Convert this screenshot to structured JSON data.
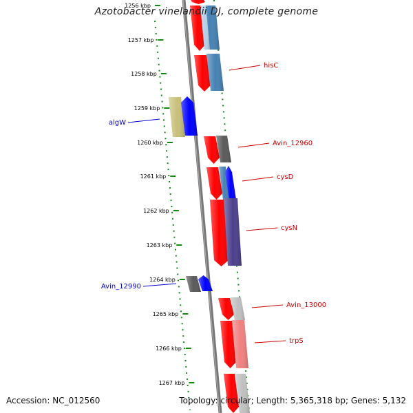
{
  "title": "Azotobacter vinelandii DJ, complete genome",
  "footer": {
    "accession": "Accession: NC_012560",
    "summary": "Topology: circular; Length: 5,365,318 bp; Genes: 5,132"
  },
  "ticks": [
    {
      "label": "1256 kbp"
    },
    {
      "label": "1257 kbp"
    },
    {
      "label": "1258 kbp"
    },
    {
      "label": "1259 kbp"
    },
    {
      "label": "1260 kbp"
    },
    {
      "label": "1261 kbp"
    },
    {
      "label": "1262 kbp"
    },
    {
      "label": "1263 kbp"
    },
    {
      "label": "1264 kbp"
    },
    {
      "label": "1265 kbp"
    },
    {
      "label": "1266 kbp"
    },
    {
      "label": "1267 kbp"
    }
  ],
  "gene_labels": [
    {
      "name": "hisC",
      "color": "#cc0000"
    },
    {
      "name": "Avin_12960",
      "color": "#cc0000"
    },
    {
      "name": "cysD",
      "color": "#cc0000"
    },
    {
      "name": "cysN",
      "color": "#cc0000"
    },
    {
      "name": "Avin_13000",
      "color": "#cc0000"
    },
    {
      "name": "trpS",
      "color": "#cc0000"
    },
    {
      "name": "algW",
      "color": "#0000cc"
    },
    {
      "name": "Avin_12990",
      "color": "#0000cc"
    }
  ],
  "colors": {
    "backbone": "#777777",
    "tick": "#118811",
    "forward_strand": "#ff0000",
    "reverse_strand": "#0000ff",
    "steelblue": "#4682b4",
    "olive": "#c8c07a",
    "darkgray": "#5a5a5a",
    "lightgray": "#c0c0c0",
    "purple": "#4b3f8c",
    "salmon": "#f08080",
    "lightblue": "#b7cfe8"
  }
}
